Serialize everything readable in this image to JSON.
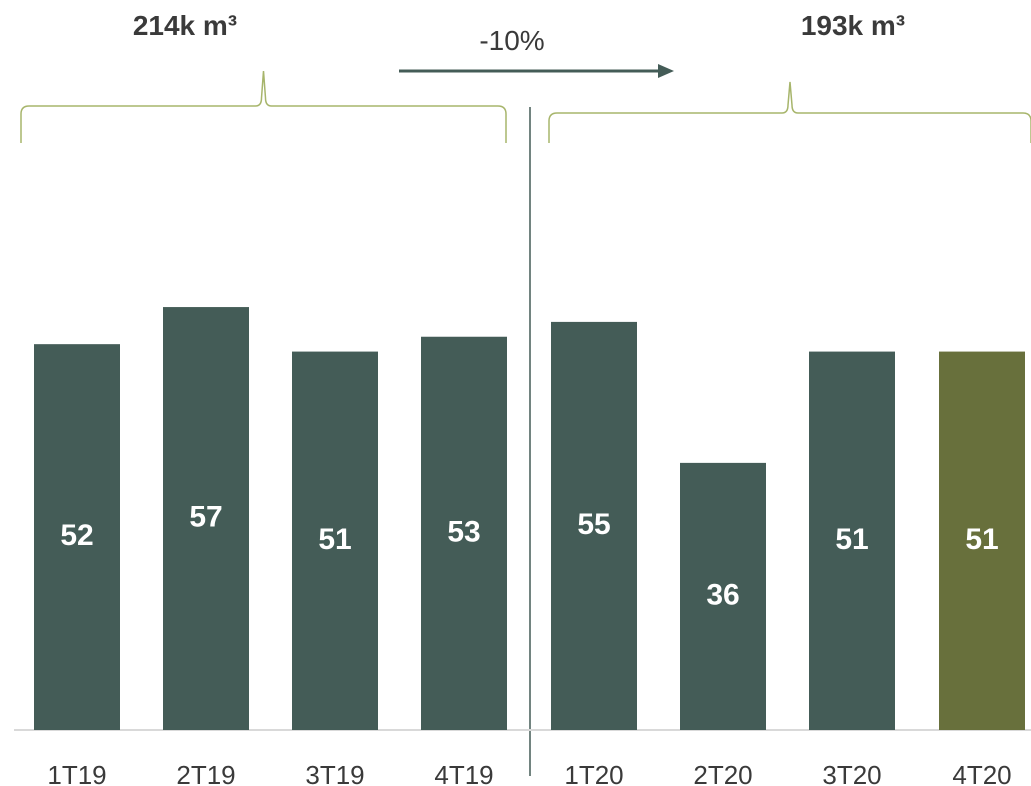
{
  "chart_data": {
    "type": "bar",
    "categories": [
      "1T19",
      "2T19",
      "3T19",
      "4T19",
      "1T20",
      "2T20",
      "3T20",
      "4T20"
    ],
    "values": [
      52,
      57,
      51,
      53,
      55,
      36,
      51,
      51
    ],
    "title": "",
    "xlabel": "",
    "ylabel": "",
    "groups": [
      {
        "total_label": "214k m³",
        "categories": [
          "1T19",
          "2T19",
          "3T19",
          "4T19"
        ]
      },
      {
        "total_label": "193k m³",
        "categories": [
          "1T20",
          "2T20",
          "3T20",
          "4T20"
        ]
      }
    ],
    "change_label": "-10%",
    "colors": {
      "bar": "#445c57",
      "highlight_bar": "#68703c",
      "brace": "#a7b56b",
      "arrow": "#445c57",
      "axis": "#d9d9d9",
      "divider": "#445c57"
    },
    "highlight_index": 7,
    "grid": false,
    "legend": "none"
  }
}
